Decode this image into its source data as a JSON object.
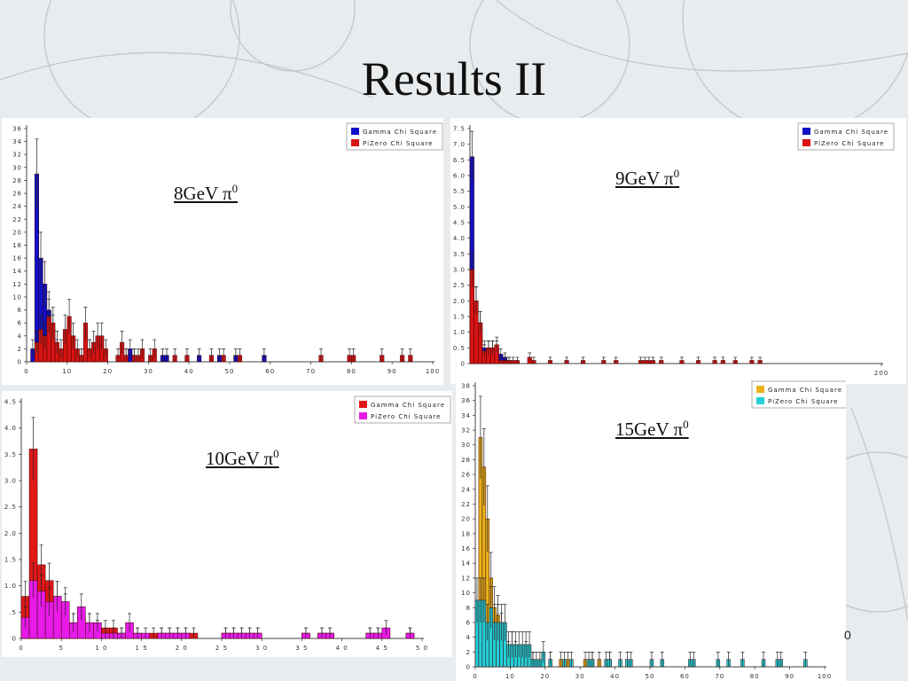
{
  "slide": {
    "title": "Results II",
    "edge_glyph": "0"
  },
  "chart_data": [
    {
      "type": "bar",
      "annotation": {
        "text": "8GeV π",
        "sup": "0"
      },
      "xlim": [
        0,
        100
      ],
      "ylim": [
        0,
        36
      ],
      "xticks": [
        0,
        10,
        20,
        30,
        40,
        50,
        60,
        70,
        80,
        90,
        100
      ],
      "yticks": [
        0,
        2,
        4,
        6,
        8,
        10,
        12,
        14,
        16,
        18,
        20,
        22,
        24,
        26,
        28,
        30,
        32,
        34,
        36
      ],
      "bin_width": 1,
      "legend": "top-right",
      "series": [
        {
          "name": "Gamma Chi Square",
          "color": "#1010c8",
          "points": [
            [
              1,
              2
            ],
            [
              2,
              29
            ],
            [
              3,
              16
            ],
            [
              4,
              12
            ],
            [
              5,
              8
            ],
            [
              6,
              5
            ],
            [
              7,
              2
            ],
            [
              9,
              1
            ],
            [
              13,
              1
            ],
            [
              15,
              2
            ],
            [
              16,
              1
            ],
            [
              24,
              1
            ],
            [
              25,
              2
            ],
            [
              26,
              1
            ],
            [
              33,
              1
            ],
            [
              34,
              1
            ],
            [
              42,
              1
            ],
            [
              47,
              1
            ],
            [
              51,
              1
            ],
            [
              58,
              1
            ]
          ]
        },
        {
          "name": "PiZero Chi Square",
          "color": "#d81414",
          "points": [
            [
              2,
              3
            ],
            [
              3,
              5
            ],
            [
              4,
              4
            ],
            [
              5,
              7
            ],
            [
              6,
              6
            ],
            [
              7,
              3
            ],
            [
              8,
              2
            ],
            [
              9,
              5
            ],
            [
              10,
              7
            ],
            [
              11,
              4
            ],
            [
              12,
              2
            ],
            [
              13,
              1
            ],
            [
              14,
              6
            ],
            [
              15,
              2
            ],
            [
              16,
              3
            ],
            [
              17,
              4
            ],
            [
              18,
              4
            ],
            [
              19,
              2
            ],
            [
              22,
              1
            ],
            [
              23,
              3
            ],
            [
              24,
              1
            ],
            [
              26,
              1
            ],
            [
              27,
              1
            ],
            [
              28,
              2
            ],
            [
              30,
              1
            ],
            [
              31,
              2
            ],
            [
              36,
              1
            ],
            [
              39,
              1
            ],
            [
              45,
              1
            ],
            [
              48,
              1
            ],
            [
              52,
              1
            ],
            [
              72,
              1
            ],
            [
              79,
              1
            ],
            [
              80,
              1
            ],
            [
              87,
              1
            ],
            [
              92,
              1
            ],
            [
              94,
              1
            ]
          ]
        }
      ]
    },
    {
      "type": "bar",
      "annotation": {
        "text": "9GeV π",
        "sup": "0"
      },
      "xlim": [
        0,
        200
      ],
      "ylim": [
        0,
        75
      ],
      "xticks": [
        200
      ],
      "yticks": [
        0,
        5,
        10,
        15,
        20,
        25,
        30,
        35,
        40,
        45,
        50,
        55,
        60,
        65,
        70,
        75
      ],
      "ytick_labels": [
        "0",
        "0.5",
        "1.0",
        "1.5",
        "2.0",
        "2.5",
        "3.0",
        "3.5",
        "4.0",
        "4.5",
        "5.0",
        "5.5",
        "6.0",
        "6.5",
        "7.0",
        "7.5"
      ],
      "bin_width": 2,
      "legend": "top-right",
      "series": [
        {
          "name": "Gamma Chi Square",
          "color": "#1010c8",
          "points": [
            [
              0,
              66
            ],
            [
              2,
              20
            ],
            [
              4,
              13
            ],
            [
              6,
              5
            ],
            [
              8,
              5
            ],
            [
              10,
              5
            ],
            [
              12,
              5
            ],
            [
              14,
              3
            ],
            [
              16,
              2
            ],
            [
              18,
              1
            ]
          ]
        },
        {
          "name": "PiZero Chi Square",
          "color": "#d81414",
          "points": [
            [
              0,
              30
            ],
            [
              2,
              20
            ],
            [
              4,
              13
            ],
            [
              6,
              4
            ],
            [
              8,
              5
            ],
            [
              10,
              5
            ],
            [
              12,
              6
            ],
            [
              14,
              1
            ],
            [
              16,
              1
            ],
            [
              18,
              1
            ],
            [
              20,
              1
            ],
            [
              22,
              1
            ],
            [
              28,
              2
            ],
            [
              30,
              1
            ],
            [
              38,
              1
            ],
            [
              46,
              1
            ],
            [
              54,
              1
            ],
            [
              64,
              1
            ],
            [
              70,
              1
            ],
            [
              82,
              1
            ],
            [
              84,
              1
            ],
            [
              86,
              1
            ],
            [
              88,
              1
            ],
            [
              92,
              1
            ],
            [
              102,
              1
            ],
            [
              110,
              1
            ],
            [
              118,
              1
            ],
            [
              122,
              1
            ],
            [
              128,
              1
            ],
            [
              136,
              1
            ],
            [
              140,
              1
            ]
          ]
        }
      ]
    },
    {
      "type": "bar",
      "annotation": {
        "text": "10GeV π",
        "sup": "0"
      },
      "xlim": [
        0,
        50
      ],
      "ylim": [
        0,
        45
      ],
      "xticks": [
        0,
        5,
        10,
        15,
        20,
        25,
        30,
        35,
        40,
        45,
        50
      ],
      "xtick_labels": [
        "0",
        "5",
        "1 0",
        "1 5",
        "2 0",
        "2 5",
        "3 0",
        "3 5",
        "4 0",
        "4 5",
        "5 0"
      ],
      "yticks": [
        0,
        5,
        10,
        15,
        20,
        25,
        30,
        35,
        40,
        45
      ],
      "ytick_labels": [
        "0",
        ".5",
        "1.0",
        "1.5",
        "2.0",
        "2.5",
        "3.0",
        "3.5",
        "4.0",
        "4.5"
      ],
      "bin_width": 1,
      "legend": "top-right",
      "series": [
        {
          "name": "Gamma Chi Square",
          "color": "#e01818",
          "points": [
            [
              0,
              8
            ],
            [
              1,
              36
            ],
            [
              2,
              14
            ],
            [
              3,
              11
            ],
            [
              4,
              8
            ],
            [
              5,
              6
            ],
            [
              6,
              3
            ],
            [
              7,
              4
            ],
            [
              8,
              3
            ],
            [
              9,
              2
            ],
            [
              10,
              2
            ],
            [
              11,
              2
            ],
            [
              12,
              1
            ],
            [
              13,
              1
            ],
            [
              14,
              1
            ],
            [
              16,
              1
            ],
            [
              17,
              1
            ],
            [
              18,
              1
            ],
            [
              19,
              1
            ],
            [
              20,
              1
            ],
            [
              21,
              1
            ],
            [
              25,
              1
            ],
            [
              26,
              1
            ],
            [
              27,
              1
            ],
            [
              28,
              1
            ],
            [
              29,
              1
            ],
            [
              35,
              1
            ],
            [
              37,
              1
            ],
            [
              38,
              1
            ],
            [
              43,
              1
            ],
            [
              44,
              1
            ],
            [
              45,
              1
            ],
            [
              48,
              1
            ]
          ]
        },
        {
          "name": "PiZero Chi Square",
          "color": "#e81ae8",
          "points": [
            [
              0,
              4
            ],
            [
              1,
              11
            ],
            [
              2,
              9
            ],
            [
              3,
              7
            ],
            [
              4,
              8
            ],
            [
              5,
              7
            ],
            [
              6,
              3
            ],
            [
              7,
              6
            ],
            [
              8,
              3
            ],
            [
              9,
              3
            ],
            [
              10,
              1
            ],
            [
              11,
              1
            ],
            [
              12,
              1
            ],
            [
              13,
              3
            ],
            [
              14,
              1
            ],
            [
              15,
              1
            ],
            [
              17,
              1
            ],
            [
              18,
              1
            ],
            [
              19,
              1
            ],
            [
              20,
              1
            ],
            [
              25,
              1
            ],
            [
              26,
              1
            ],
            [
              27,
              1
            ],
            [
              28,
              1
            ],
            [
              29,
              1
            ],
            [
              35,
              1
            ],
            [
              37,
              1
            ],
            [
              38,
              1
            ],
            [
              43,
              1
            ],
            [
              44,
              1
            ],
            [
              45,
              2
            ],
            [
              48,
              1
            ]
          ]
        }
      ]
    },
    {
      "type": "bar",
      "annotation": {
        "text": "15GeV π",
        "sup": "0"
      },
      "xlim": [
        0,
        100
      ],
      "ylim": [
        0,
        38
      ],
      "xticks": [
        0,
        10,
        20,
        30,
        40,
        50,
        60,
        70,
        80,
        90,
        100
      ],
      "yticks": [
        0,
        2,
        4,
        6,
        8,
        10,
        12,
        14,
        16,
        18,
        20,
        22,
        24,
        26,
        28,
        30,
        32,
        34,
        36,
        38
      ],
      "bin_width": 1,
      "legend": "top-right",
      "series": [
        {
          "name": "Gamma Chi Square",
          "color": "#e8b21a",
          "points": [
            [
              1,
              31
            ],
            [
              2,
              27
            ],
            [
              3,
              20
            ],
            [
              4,
              12
            ],
            [
              5,
              8
            ],
            [
              6,
              7
            ],
            [
              7,
              5
            ],
            [
              8,
              3
            ],
            [
              9,
              2
            ],
            [
              10,
              3
            ],
            [
              11,
              2
            ],
            [
              13,
              1
            ],
            [
              14,
              2
            ],
            [
              15,
              1
            ],
            [
              16,
              1
            ],
            [
              19,
              1
            ],
            [
              21,
              1
            ],
            [
              24,
              1
            ],
            [
              26,
              1
            ],
            [
              31,
              1
            ],
            [
              33,
              1
            ],
            [
              35,
              1
            ],
            [
              38,
              1
            ]
          ]
        },
        {
          "name": "PiZero Chi Square",
          "color": "#22d0d8",
          "points": [
            [
              0,
              9
            ],
            [
              1,
              9
            ],
            [
              2,
              9
            ],
            [
              3,
              6
            ],
            [
              4,
              8
            ],
            [
              5,
              6
            ],
            [
              6,
              6
            ],
            [
              7,
              6
            ],
            [
              8,
              6
            ],
            [
              9,
              3
            ],
            [
              10,
              3
            ],
            [
              11,
              3
            ],
            [
              12,
              3
            ],
            [
              13,
              3
            ],
            [
              14,
              3
            ],
            [
              15,
              3
            ],
            [
              16,
              1
            ],
            [
              17,
              1
            ],
            [
              18,
              1
            ],
            [
              19,
              2
            ],
            [
              21,
              1
            ],
            [
              25,
              1
            ],
            [
              27,
              1
            ],
            [
              32,
              1
            ],
            [
              33,
              1
            ],
            [
              37,
              1
            ],
            [
              38,
              1
            ],
            [
              41,
              1
            ],
            [
              43,
              1
            ],
            [
              44,
              1
            ],
            [
              50,
              1
            ],
            [
              53,
              1
            ],
            [
              61,
              1
            ],
            [
              62,
              1
            ],
            [
              69,
              1
            ],
            [
              72,
              1
            ],
            [
              76,
              1
            ],
            [
              82,
              1
            ],
            [
              86,
              1
            ],
            [
              87,
              1
            ],
            [
              94,
              1
            ]
          ]
        }
      ]
    }
  ]
}
